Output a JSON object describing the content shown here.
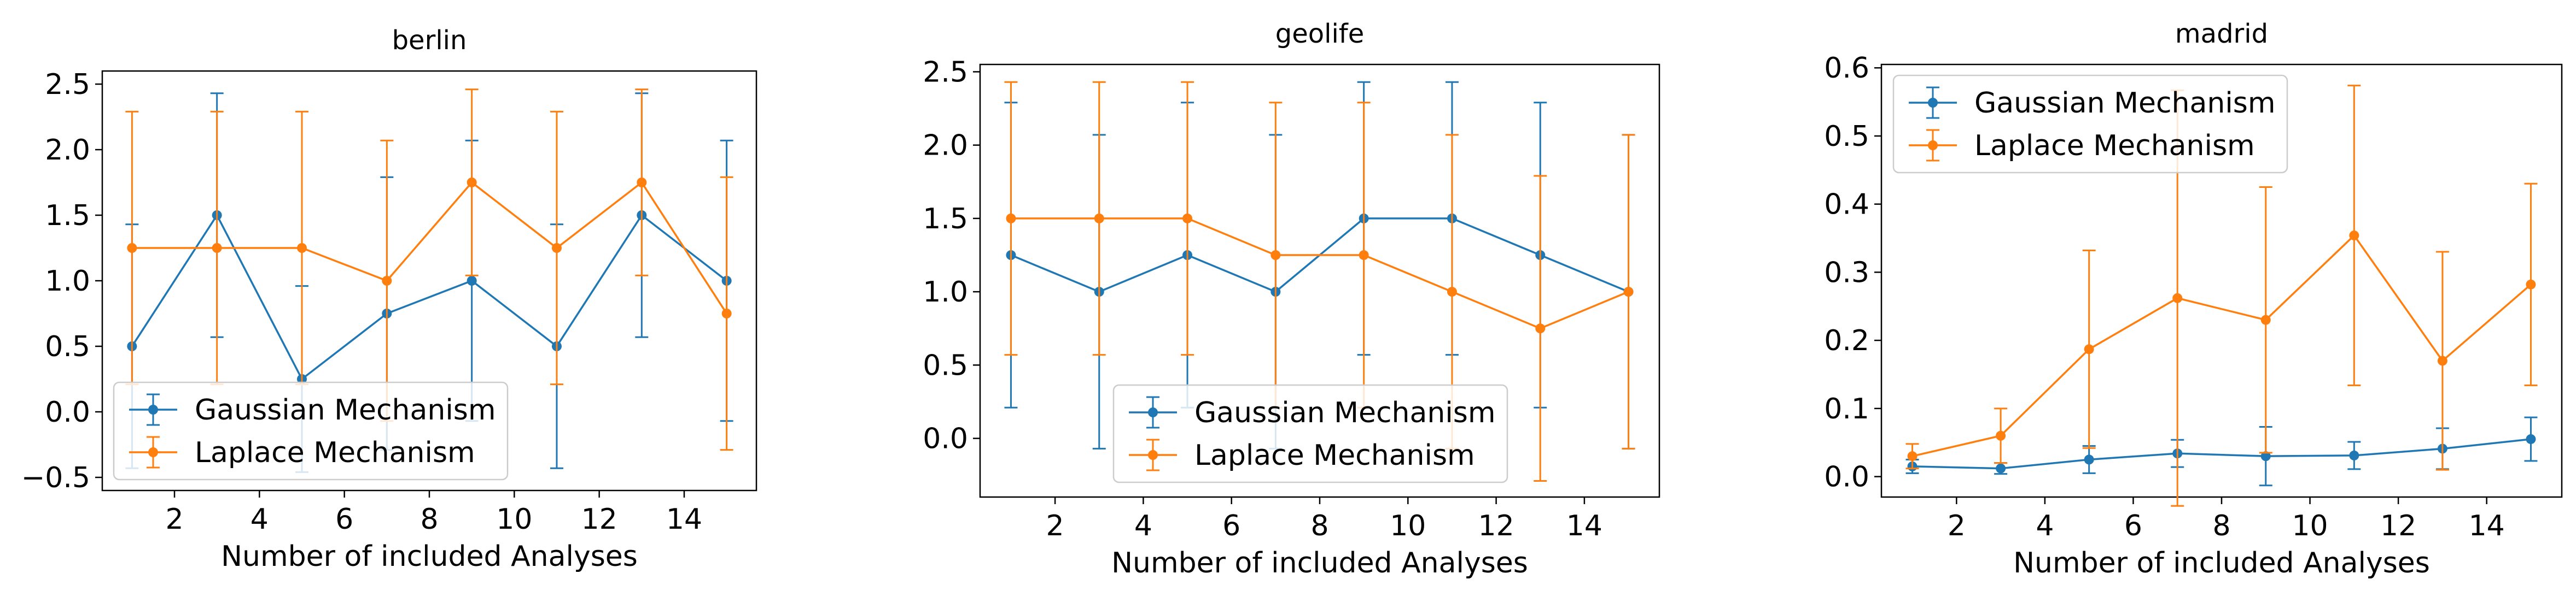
{
  "chart_data": [
    {
      "type": "line",
      "title": "berlin",
      "xlabel": "Number of included Analyses",
      "ylabel": "",
      "xlim": [
        0.3,
        15.7
      ],
      "ylim": [
        -0.6,
        2.6
      ],
      "xticks": [
        2,
        4,
        6,
        8,
        10,
        12,
        14
      ],
      "yticks": [
        -0.5,
        0.0,
        0.5,
        1.0,
        1.5,
        2.0,
        2.5
      ],
      "ytick_format": 1,
      "grid": false,
      "legend_position": "lower-left",
      "x": [
        1,
        3,
        5,
        7,
        9,
        11,
        13,
        15
      ],
      "series": [
        {
          "name": "Gaussian Mechanism",
          "color": "#1f77b4",
          "values": [
            0.5,
            1.5,
            0.25,
            0.75,
            1.0,
            0.5,
            1.5,
            1.0
          ],
          "error": [
            0.93,
            0.93,
            0.71,
            1.04,
            1.07,
            0.93,
            0.93,
            1.07
          ]
        },
        {
          "name": "Laplace Mechanism",
          "color": "#ff7f0e",
          "values": [
            1.25,
            1.25,
            1.25,
            1.0,
            1.75,
            1.25,
            1.75,
            0.75
          ],
          "error": [
            1.04,
            1.04,
            1.04,
            1.07,
            0.71,
            1.04,
            0.71,
            1.04
          ]
        }
      ]
    },
    {
      "type": "line",
      "title": "geolife",
      "xlabel": "Number of included Analyses",
      "ylabel": "",
      "xlim": [
        0.3,
        15.7
      ],
      "ylim": [
        -0.4,
        2.55
      ],
      "xticks": [
        2,
        4,
        6,
        8,
        10,
        12,
        14
      ],
      "yticks": [
        0.0,
        0.5,
        1.0,
        1.5,
        2.0,
        2.5
      ],
      "ytick_format": 1,
      "grid": false,
      "legend_position": "lower-center",
      "x": [
        1,
        3,
        5,
        7,
        9,
        11,
        13,
        15
      ],
      "series": [
        {
          "name": "Gaussian Mechanism",
          "color": "#1f77b4",
          "values": [
            1.25,
            1.0,
            1.25,
            1.0,
            1.5,
            1.5,
            1.25,
            1.0
          ],
          "error": [
            1.04,
            1.07,
            1.04,
            1.07,
            0.93,
            0.93,
            1.04,
            1.07
          ]
        },
        {
          "name": "Laplace Mechanism",
          "color": "#ff7f0e",
          "values": [
            1.5,
            1.5,
            1.5,
            1.25,
            1.25,
            1.0,
            0.75,
            1.0
          ],
          "error": [
            0.93,
            0.93,
            0.93,
            1.04,
            1.04,
            1.07,
            1.04,
            1.07
          ]
        }
      ]
    },
    {
      "type": "line",
      "title": "madrid",
      "xlabel": "Number of included Analyses",
      "ylabel": "",
      "xlim": [
        0.3,
        15.7
      ],
      "ylim": [
        -0.03,
        0.605
      ],
      "xticks": [
        2,
        4,
        6,
        8,
        10,
        12,
        14
      ],
      "yticks": [
        0.0,
        0.1,
        0.2,
        0.3,
        0.4,
        0.5,
        0.6
      ],
      "ytick_format": 1,
      "grid": false,
      "legend_position": "top-left",
      "x": [
        1,
        3,
        5,
        7,
        9,
        11,
        13,
        15
      ],
      "series": [
        {
          "name": "Gaussian Mechanism",
          "color": "#1f77b4",
          "values": [
            0.015,
            0.012,
            0.025,
            0.034,
            0.03,
            0.031,
            0.041,
            0.055
          ],
          "error": [
            0.01,
            0.008,
            0.02,
            0.02,
            0.043,
            0.02,
            0.03,
            0.032
          ]
        },
        {
          "name": "Laplace Mechanism",
          "color": "#ff7f0e",
          "values": [
            0.03,
            0.06,
            0.187,
            0.262,
            0.23,
            0.354,
            0.17,
            0.282
          ],
          "error": [
            0.018,
            0.04,
            0.145,
            0.305,
            0.195,
            0.22,
            0.16,
            0.148
          ]
        }
      ]
    }
  ]
}
